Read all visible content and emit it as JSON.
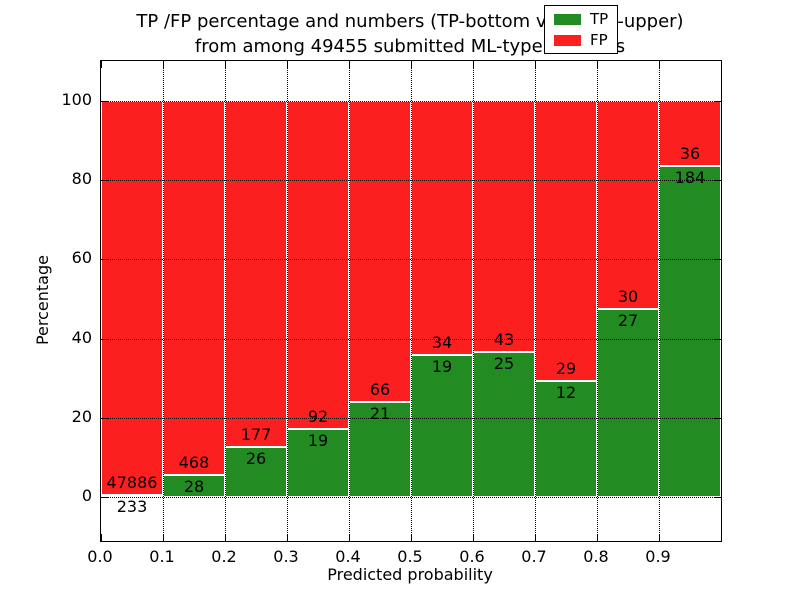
{
  "title": {
    "line1": "TP /FP percentage and numbers (TP-bottom value, FP-upper)",
    "line2": "from among 49455 submitted ML-type contacts"
  },
  "chart_data": {
    "type": "bar",
    "stacked": true,
    "normalized_to_percent": true,
    "title": "TP /FP percentage and numbers (TP-bottom value, FP-upper) from among 49455 submitted ML-type contacts",
    "total_contacts": 49455,
    "categories": [
      "0.0-0.1",
      "0.1-0.2",
      "0.2-0.3",
      "0.3-0.4",
      "0.4-0.5",
      "0.5-0.6",
      "0.6-0.7",
      "0.7-0.8",
      "0.8-0.9",
      "0.9-1.0"
    ],
    "series": [
      {
        "name": "TP",
        "color": "#228B22",
        "values": [
          233,
          28,
          26,
          19,
          21,
          19,
          25,
          12,
          27,
          184
        ]
      },
      {
        "name": "FP",
        "color": "#FB1F1F",
        "values": [
          47886,
          468,
          177,
          92,
          66,
          34,
          43,
          29,
          30,
          36
        ]
      }
    ],
    "tp_percent_per_bin": [
      0.48,
      5.65,
      12.81,
      17.12,
      24.14,
      35.85,
      36.76,
      29.27,
      47.37,
      83.64
    ],
    "xlabel": "Predicted probability",
    "ylabel": "Percentage",
    "x_ticks": [
      "0.0",
      "0.1",
      "0.2",
      "0.3",
      "0.4",
      "0.5",
      "0.6",
      "0.7",
      "0.8",
      "0.9"
    ],
    "y_ticks": [
      0,
      20,
      40,
      60,
      80,
      100
    ],
    "xlim": [
      0.0,
      1.0
    ],
    "ylim": [
      -11,
      110
    ],
    "grid": "dotted",
    "legend": {
      "position": "upper right",
      "entries": [
        "TP",
        "FP"
      ]
    }
  }
}
